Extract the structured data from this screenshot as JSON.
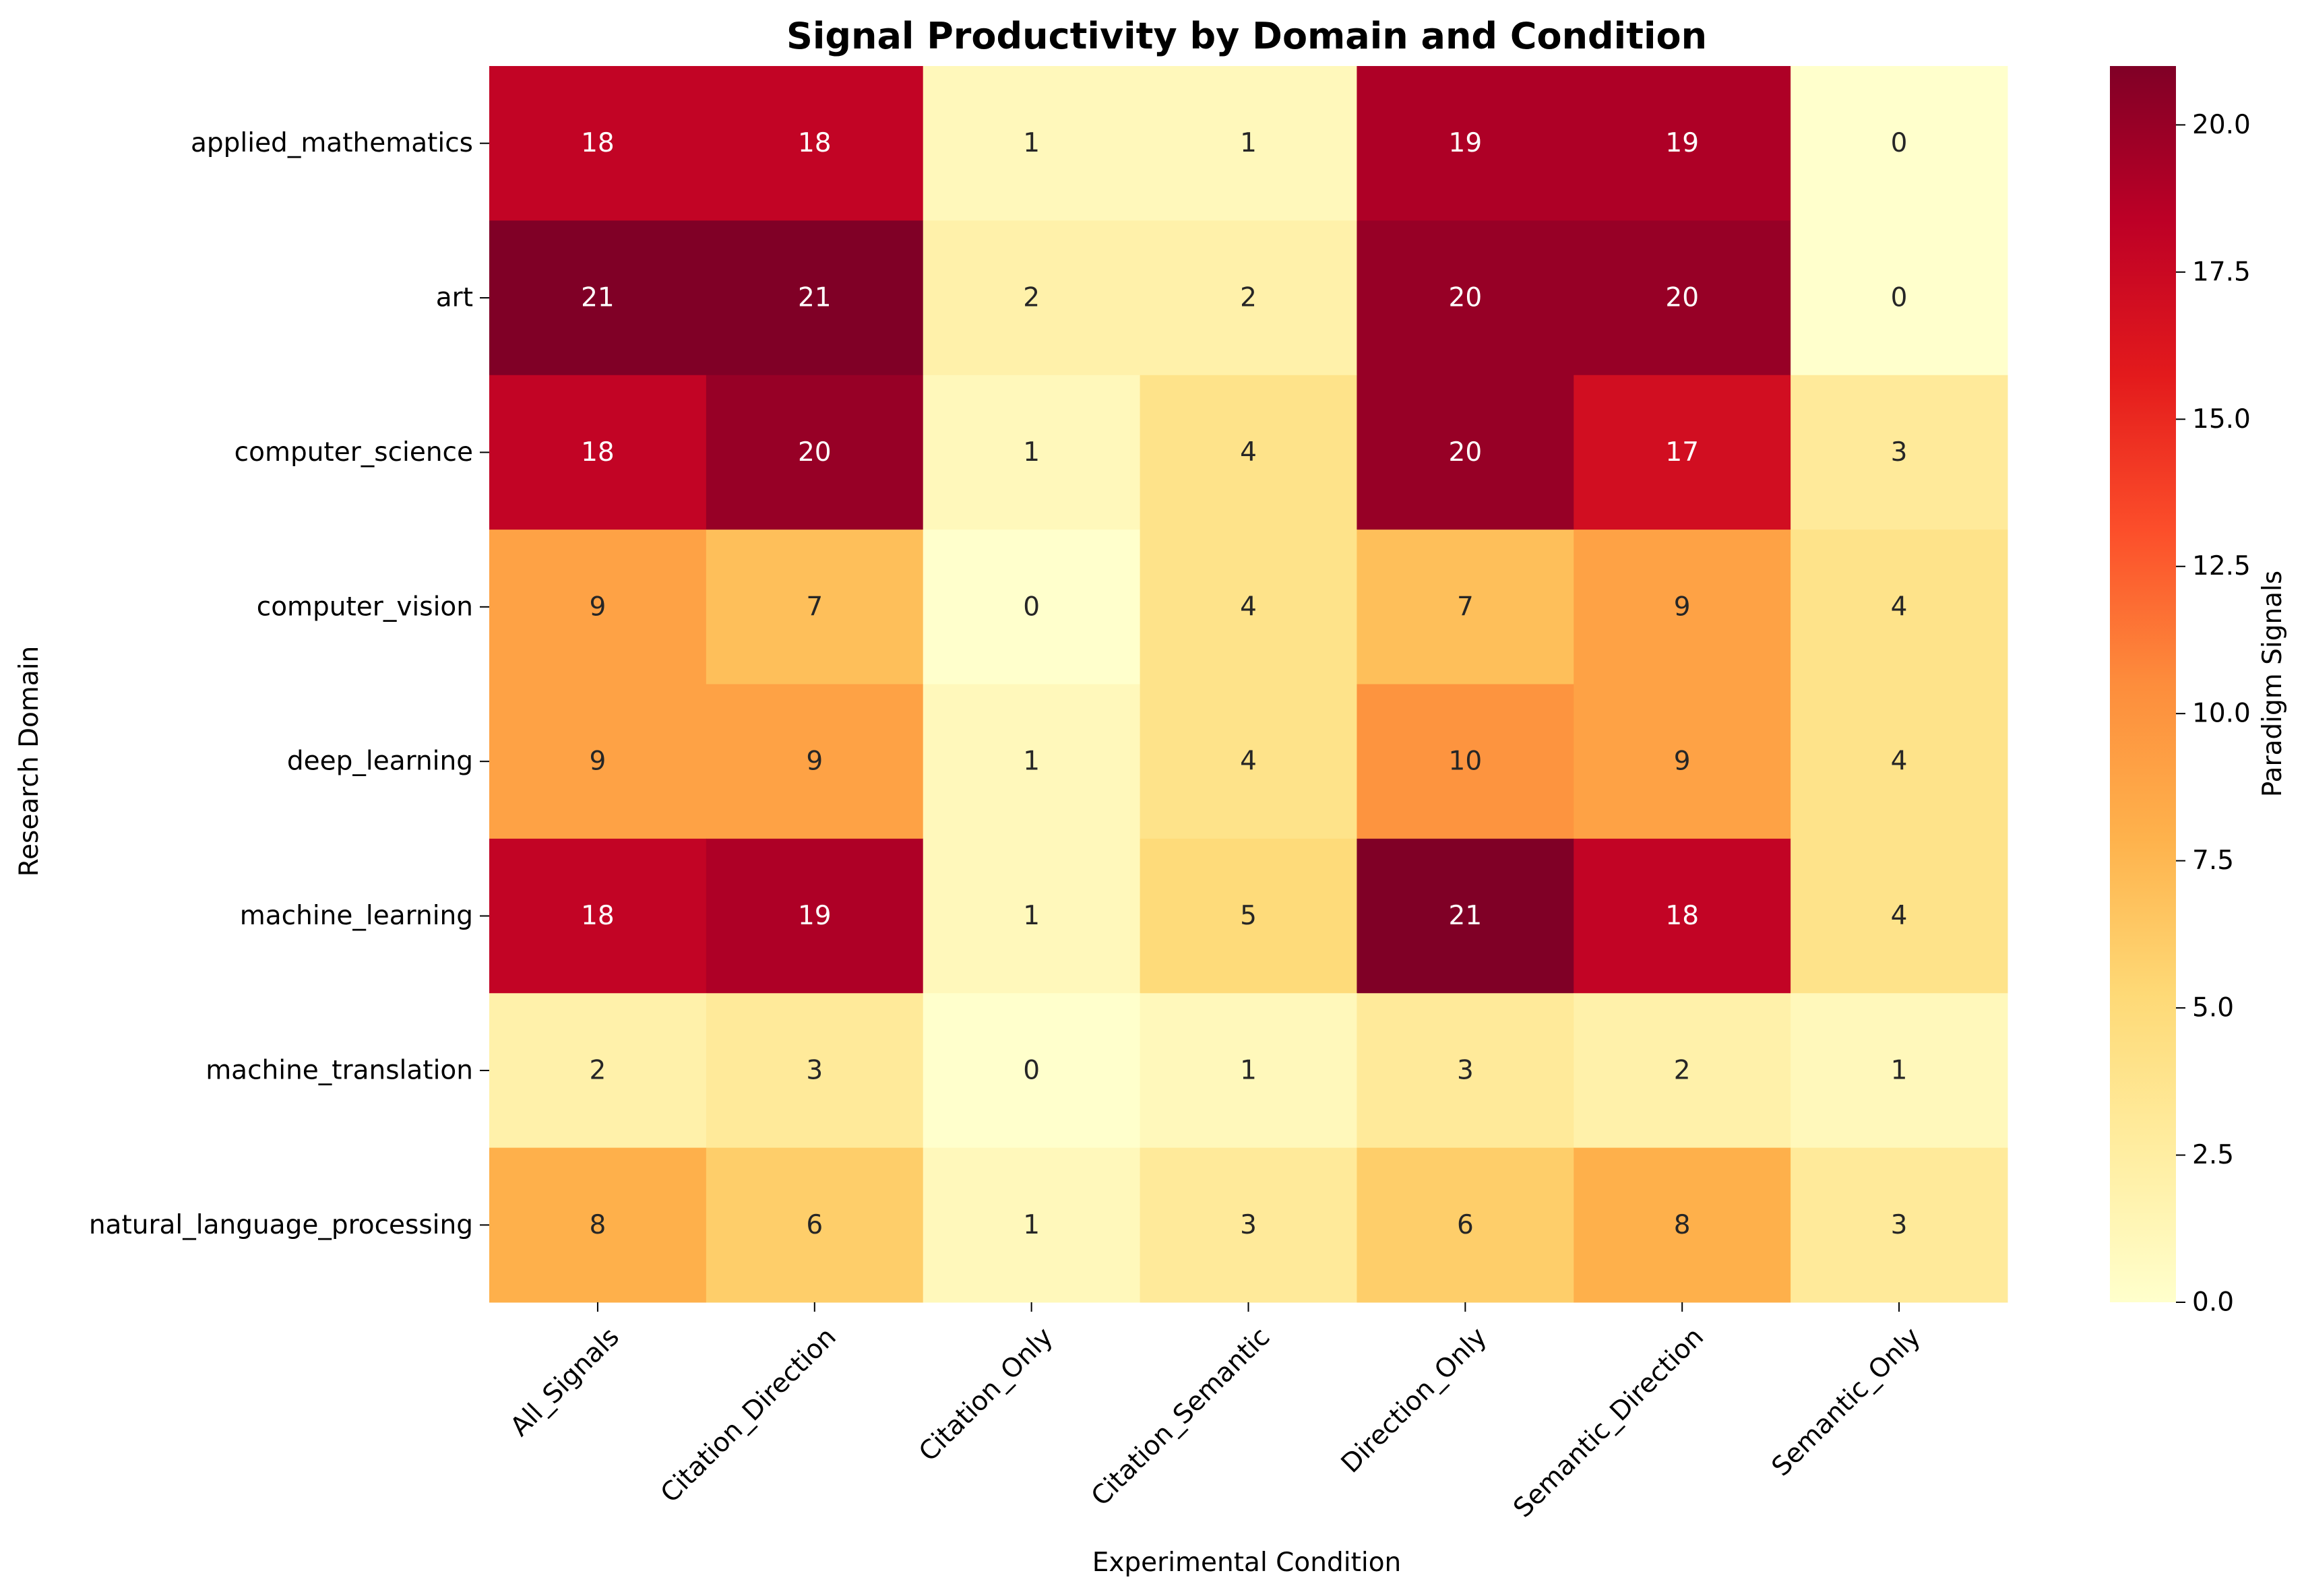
{
  "chart_data": {
    "type": "heatmap",
    "title": "Signal Productivity by Domain and Condition",
    "xlabel": "Experimental Condition",
    "ylabel": "Research Domain",
    "colorbar_label": "Paradigm Signals",
    "colormap": "YlOrRd",
    "vmin": 0,
    "vmax": 21,
    "colorbar_ticks": [
      "0.0",
      "2.5",
      "5.0",
      "7.5",
      "10.0",
      "12.5",
      "15.0",
      "17.5",
      "20.0"
    ],
    "x_categories": [
      "All_Signals",
      "Citation_Direction",
      "Citation_Only",
      "Citation_Semantic",
      "Direction_Only",
      "Semantic_Direction",
      "Semantic_Only"
    ],
    "y_categories": [
      "applied_mathematics",
      "art",
      "computer_science",
      "computer_vision",
      "deep_learning",
      "machine_learning",
      "machine_translation",
      "natural_language_processing"
    ],
    "values": [
      [
        18,
        18,
        1,
        1,
        19,
        19,
        0
      ],
      [
        21,
        21,
        2,
        2,
        20,
        20,
        0
      ],
      [
        18,
        20,
        1,
        4,
        20,
        17,
        3
      ],
      [
        9,
        7,
        0,
        4,
        7,
        9,
        4
      ],
      [
        9,
        9,
        1,
        4,
        10,
        9,
        4
      ],
      [
        18,
        19,
        1,
        5,
        21,
        18,
        4
      ],
      [
        2,
        3,
        0,
        1,
        3,
        2,
        1
      ],
      [
        8,
        6,
        1,
        3,
        6,
        8,
        3
      ]
    ]
  }
}
